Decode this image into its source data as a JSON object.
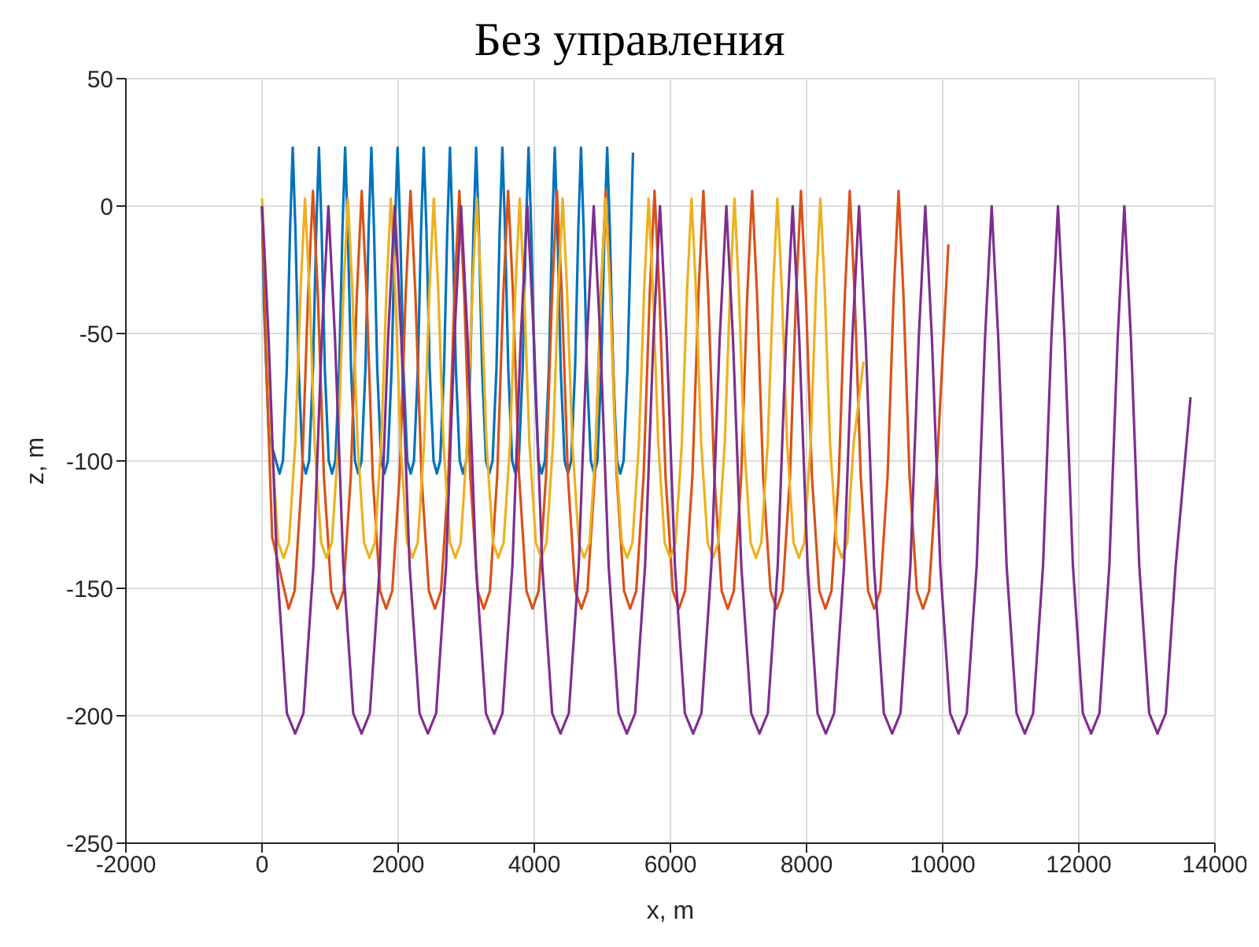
{
  "chart_data": {
    "type": "line",
    "title": "Без управления",
    "xlabel": "x, m",
    "ylabel": "z, m",
    "xlim": [
      -2000,
      14000
    ],
    "xticks": [
      -2000,
      0,
      2000,
      4000,
      6000,
      8000,
      10000,
      12000,
      14000
    ],
    "ylim": [
      -250,
      50
    ],
    "yticks": [
      -250,
      -200,
      -150,
      -100,
      -50,
      0,
      50
    ],
    "grid": true,
    "marker": "none",
    "line_style": "solid",
    "series": [
      {
        "color": "#0072bd",
        "x": [
          0,
          30,
          100,
          258,
          307,
          364,
          412,
          451,
          490,
          538,
          595,
          644,
          692,
          749,
          797,
          836,
          875,
          923,
          980,
          1029,
          1077,
          1134,
          1182,
          1221,
          1260,
          1308,
          1365,
          1414,
          1462,
          1519,
          1567,
          1606,
          1645,
          1693,
          1750,
          1799,
          1847,
          1904,
          1952,
          1991,
          2030,
          2078,
          2135,
          2184,
          2232,
          2289,
          2337,
          2376,
          2415,
          2463,
          2520,
          2569,
          2617,
          2674,
          2722,
          2761,
          2800,
          2848,
          2905,
          2954,
          3002,
          3059,
          3107,
          3146,
          3185,
          3233,
          3290,
          3339,
          3387,
          3444,
          3492,
          3531,
          3570,
          3618,
          3675,
          3724,
          3772,
          3829,
          3877,
          3916,
          3955,
          4003,
          4060,
          4109,
          4157,
          4214,
          4262,
          4301,
          4340,
          4388,
          4445,
          4494,
          4542,
          4599,
          4647,
          4686,
          4725,
          4773,
          4830,
          4879,
          4927,
          4984,
          5032,
          5071,
          5110,
          5158,
          5215,
          5264,
          5312,
          5369,
          5450
        ],
        "values": [
          0,
          -40,
          -90,
          -105,
          -100,
          -64,
          -9,
          23,
          -9,
          -64,
          -100,
          -105,
          -100,
          -64,
          -9,
          23,
          -9,
          -64,
          -100,
          -105,
          -100,
          -64,
          -9,
          23,
          -9,
          -64,
          -100,
          -105,
          -100,
          -64,
          -9,
          23,
          -9,
          -64,
          -100,
          -105,
          -100,
          -64,
          -9,
          23,
          -9,
          -64,
          -100,
          -105,
          -100,
          -64,
          -9,
          23,
          -9,
          -64,
          -100,
          -105,
          -100,
          -64,
          -9,
          23,
          -9,
          -64,
          -100,
          -105,
          -100,
          -64,
          -9,
          23,
          -9,
          -64,
          -100,
          -105,
          -100,
          -64,
          -9,
          23,
          -9,
          -64,
          -100,
          -105,
          -100,
          -64,
          -9,
          23,
          -9,
          -64,
          -100,
          -105,
          -100,
          -64,
          -9,
          23,
          -9,
          -64,
          -100,
          -105,
          -100,
          -64,
          -9,
          23,
          -9,
          -64,
          -100,
          -105,
          -100,
          -64,
          -9,
          23,
          -9,
          -64,
          -100,
          -105,
          -100,
          -64,
          21
        ]
      },
      {
        "color": "#d95319",
        "x": [
          0,
          60,
          150,
          390,
          479,
          587,
          676,
          748,
          820,
          909,
          1017,
          1107,
          1196,
          1304,
          1393,
          1465,
          1537,
          1626,
          1734,
          1824,
          1913,
          2021,
          2110,
          2182,
          2254,
          2343,
          2451,
          2541,
          2630,
          2738,
          2827,
          2899,
          2971,
          3060,
          3168,
          3258,
          3347,
          3455,
          3544,
          3616,
          3688,
          3777,
          3885,
          3975,
          4064,
          4172,
          4261,
          4333,
          4405,
          4494,
          4602,
          4692,
          4781,
          4889,
          4978,
          5050,
          5122,
          5211,
          5319,
          5409,
          5498,
          5606,
          5695,
          5767,
          5839,
          5928,
          6036,
          6126,
          6215,
          6323,
          6412,
          6484,
          6556,
          6645,
          6753,
          6843,
          6932,
          7040,
          7129,
          7201,
          7273,
          7362,
          7470,
          7560,
          7649,
          7757,
          7846,
          7918,
          7990,
          8079,
          8187,
          8277,
          8366,
          8474,
          8563,
          8635,
          8707,
          8796,
          8904,
          8994,
          9083,
          9191,
          9280,
          9352,
          9424,
          9513,
          9621,
          9711,
          9800,
          9908,
          10084
        ],
        "values": [
          0,
          -60,
          -130,
          -158,
          -151,
          -106,
          -35,
          6,
          -35,
          -106,
          -151,
          -158,
          -151,
          -106,
          -35,
          6,
          -35,
          -106,
          -151,
          -158,
          -151,
          -106,
          -35,
          6,
          -35,
          -106,
          -151,
          -158,
          -151,
          -106,
          -35,
          6,
          -35,
          -106,
          -151,
          -158,
          -151,
          -106,
          -35,
          6,
          -35,
          -106,
          -151,
          -158,
          -151,
          -106,
          -35,
          6,
          -35,
          -106,
          -151,
          -158,
          -151,
          -106,
          -35,
          6,
          -35,
          -106,
          -151,
          -158,
          -151,
          -106,
          -35,
          6,
          -35,
          -106,
          -151,
          -158,
          -151,
          -106,
          -35,
          6,
          -35,
          -106,
          -151,
          -158,
          -151,
          -106,
          -35,
          6,
          -35,
          -106,
          -151,
          -158,
          -151,
          -106,
          -35,
          6,
          -35,
          -106,
          -151,
          -158,
          -151,
          -106,
          -35,
          6,
          -35,
          -106,
          -151,
          -158,
          -151,
          -106,
          -35,
          6,
          -35,
          -106,
          -151,
          -158,
          -151,
          -106,
          -15
        ]
      },
      {
        "color": "#edb120",
        "x": [
          0,
          63,
          142,
          237,
          316,
          395,
          489,
          568,
          631,
          694,
          773,
          868,
          947,
          1026,
          1120,
          1199,
          1262,
          1325,
          1404,
          1499,
          1578,
          1657,
          1751,
          1830,
          1893,
          1956,
          2035,
          2130,
          2209,
          2288,
          2382,
          2461,
          2524,
          2587,
          2666,
          2761,
          2840,
          2919,
          3013,
          3092,
          3155,
          3218,
          3297,
          3392,
          3471,
          3550,
          3644,
          3723,
          3786,
          3849,
          3928,
          4023,
          4102,
          4181,
          4275,
          4354,
          4417,
          4480,
          4559,
          4654,
          4733,
          4812,
          4906,
          4985,
          5048,
          5111,
          5190,
          5285,
          5364,
          5443,
          5537,
          5616,
          5679,
          5742,
          5821,
          5916,
          5995,
          6074,
          6168,
          6247,
          6310,
          6373,
          6452,
          6547,
          6626,
          6705,
          6799,
          6878,
          6941,
          7004,
          7083,
          7178,
          7257,
          7336,
          7430,
          7509,
          7572,
          7635,
          7714,
          7809,
          7888,
          7967,
          8061,
          8140,
          8203,
          8266,
          8345,
          8440,
          8519,
          8598,
          8692,
          8837
        ],
        "values": [
          3,
          -32,
          -93,
          -132,
          -138,
          -132,
          -93,
          -32,
          3,
          -32,
          -93,
          -132,
          -138,
          -132,
          -93,
          -32,
          3,
          -32,
          -93,
          -132,
          -138,
          -132,
          -93,
          -32,
          3,
          -32,
          -93,
          -132,
          -138,
          -132,
          -93,
          -32,
          3,
          -32,
          -93,
          -132,
          -138,
          -132,
          -93,
          -32,
          3,
          -32,
          -93,
          -132,
          -138,
          -132,
          -93,
          -32,
          3,
          -32,
          -93,
          -132,
          -138,
          -132,
          -93,
          -32,
          3,
          -32,
          -93,
          -132,
          -138,
          -132,
          -93,
          -32,
          3,
          -32,
          -93,
          -132,
          -138,
          -132,
          -93,
          -32,
          3,
          -32,
          -93,
          -132,
          -138,
          -132,
          -93,
          -32,
          3,
          -32,
          -93,
          -132,
          -138,
          -132,
          -93,
          -32,
          3,
          -32,
          -93,
          -132,
          -138,
          -132,
          -93,
          -32,
          3,
          -32,
          -93,
          -132,
          -138,
          -132,
          -93,
          -32,
          3,
          -32,
          -93,
          -132,
          -138,
          -132,
          -93,
          -61
        ]
      },
      {
        "color": "#7e2f8e",
        "x": [
          0,
          97,
          219,
          365,
          487,
          609,
          755,
          877,
          975,
          1072,
          1194,
          1340,
          1462,
          1584,
          1730,
          1852,
          1949,
          2046,
          2168,
          2314,
          2436,
          2558,
          2704,
          2826,
          2924,
          3021,
          3143,
          3289,
          3411,
          3533,
          3679,
          3801,
          3898,
          3995,
          4117,
          4263,
          4385,
          4507,
          4653,
          4775,
          4873,
          4970,
          5092,
          5238,
          5360,
          5482,
          5628,
          5750,
          5847,
          5944,
          6066,
          6212,
          6334,
          6456,
          6602,
          6724,
          6822,
          6919,
          7041,
          7187,
          7309,
          7431,
          7577,
          7699,
          7796,
          7893,
          8015,
          8161,
          8283,
          8405,
          8551,
          8673,
          8771,
          8868,
          8990,
          9136,
          9258,
          9380,
          9526,
          9648,
          9745,
          9842,
          9964,
          10110,
          10232,
          10354,
          10500,
          10622,
          10720,
          10817,
          10939,
          11085,
          11207,
          11329,
          11475,
          11597,
          11694,
          11791,
          11913,
          12059,
          12181,
          12303,
          12449,
          12571,
          12669,
          12766,
          12888,
          13034,
          13156,
          13278,
          13424,
          13642
        ],
        "values": [
          0,
          -52,
          -141,
          -199,
          -207,
          -199,
          -141,
          -52,
          0,
          -52,
          -141,
          -199,
          -207,
          -199,
          -141,
          -52,
          0,
          -52,
          -141,
          -199,
          -207,
          -199,
          -141,
          -52,
          0,
          -52,
          -141,
          -199,
          -207,
          -199,
          -141,
          -52,
          0,
          -52,
          -141,
          -199,
          -207,
          -199,
          -141,
          -52,
          0,
          -52,
          -141,
          -199,
          -207,
          -199,
          -141,
          -52,
          0,
          -52,
          -141,
          -199,
          -207,
          -199,
          -141,
          -52,
          0,
          -52,
          -141,
          -199,
          -207,
          -199,
          -141,
          -52,
          0,
          -52,
          -141,
          -199,
          -207,
          -199,
          -141,
          -52,
          0,
          -52,
          -141,
          -199,
          -207,
          -199,
          -141,
          -52,
          0,
          -52,
          -141,
          -199,
          -207,
          -199,
          -141,
          -52,
          0,
          -52,
          -141,
          -199,
          -207,
          -199,
          -141,
          -52,
          0,
          -52,
          -141,
          -199,
          -207,
          -199,
          -141,
          -52,
          0,
          -52,
          -141,
          -199,
          -207,
          -199,
          -141,
          -75
        ]
      }
    ]
  }
}
